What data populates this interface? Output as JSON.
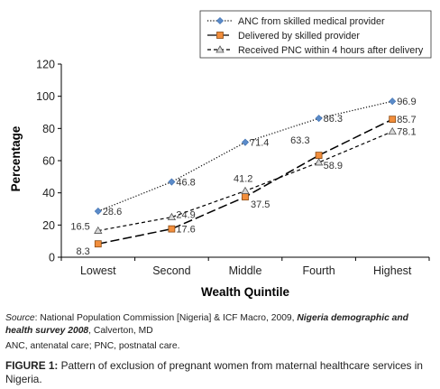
{
  "chart_data": {
    "type": "line",
    "categories": [
      "Lowest",
      "Second",
      "Middle",
      "Fourth",
      "Highest"
    ],
    "series": [
      {
        "name": "ANC from skilled medical provider",
        "values": [
          28.6,
          46.8,
          71.4,
          86.3,
          96.9
        ],
        "value_labels": [
          "28.6",
          "46.8",
          "71.4",
          "86.3",
          "96.9"
        ],
        "line_style": "dotted",
        "marker": "diamond",
        "marker_color": "#5b8bc9"
      },
      {
        "name": "Delivered by skilled provider",
        "values": [
          8.3,
          17.6,
          37.5,
          63.3,
          85.7
        ],
        "value_labels": [
          "8.3",
          "17.6",
          "37.5",
          "63.3",
          "85.7"
        ],
        "line_style": "long-dash",
        "marker": "square",
        "marker_color": "#f28e3c"
      },
      {
        "name": "Received PNC within 4 hours after delivery",
        "values": [
          16.5,
          24.9,
          41.2,
          58.9,
          78.1
        ],
        "value_labels": [
          "16.5",
          "24.9",
          "41.2",
          "58.9",
          "78.1"
        ],
        "line_style": "short-dash",
        "marker": "triangle",
        "marker_color": "#d9d9d9"
      }
    ],
    "xlabel": "Wealth Quintile",
    "ylabel": "Percentage",
    "ylim": [
      0,
      120
    ],
    "yticks": [
      "0",
      "20",
      "40",
      "60",
      "80",
      "100",
      "120"
    ],
    "grid": false,
    "legend_position": "top-right"
  },
  "source": {
    "label": "Source",
    "text_1": ": National Population Commission [Nigeria] & ICF Macro, 2009, ",
    "italic_bold": "Nigeria demographic and health survey 2008",
    "text_2": ", Calverton, MD"
  },
  "abbreviations": "ANC, antenatal care; PNC, postnatal care.",
  "caption": {
    "label": "FIGURE 1:",
    "text": " Pattern of exclusion of pregnant women from maternal healthcare services in Nigeria."
  },
  "colors": {
    "line": "#000000",
    "diamond": "#5b8bc9",
    "square": "#f28e3c",
    "triangle": "#d9d9d9"
  }
}
